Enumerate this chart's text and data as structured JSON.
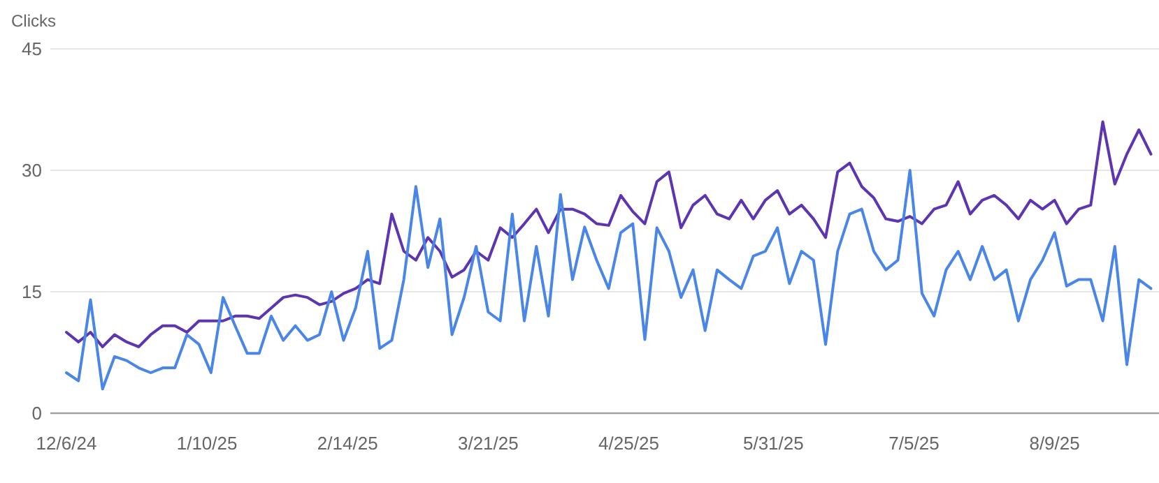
{
  "chart_data": {
    "type": "line",
    "ylabel": "Clicks",
    "x": [
      "2024-12-06",
      "2024-12-09",
      "2024-12-12",
      "2024-12-15",
      "2024-12-18",
      "2024-12-21",
      "2024-12-24",
      "2024-12-27",
      "2024-12-30",
      "2025-01-02",
      "2025-01-05",
      "2025-01-08",
      "2025-01-11",
      "2025-01-14",
      "2025-01-17",
      "2025-01-20",
      "2025-01-23",
      "2025-01-26",
      "2025-01-29",
      "2025-02-01",
      "2025-02-04",
      "2025-02-07",
      "2025-02-10",
      "2025-02-13",
      "2025-02-16",
      "2025-02-19",
      "2025-02-22",
      "2025-02-25",
      "2025-02-28",
      "2025-03-03",
      "2025-03-06",
      "2025-03-09",
      "2025-03-12",
      "2025-03-15",
      "2025-03-18",
      "2025-03-21",
      "2025-03-24",
      "2025-03-27",
      "2025-03-30",
      "2025-04-02",
      "2025-04-05",
      "2025-04-08",
      "2025-04-11",
      "2025-04-14",
      "2025-04-17",
      "2025-04-20",
      "2025-04-23",
      "2025-04-26",
      "2025-04-29",
      "2025-05-02",
      "2025-05-05",
      "2025-05-08",
      "2025-05-11",
      "2025-05-14",
      "2025-05-17",
      "2025-05-20",
      "2025-05-23",
      "2025-05-26",
      "2025-05-29",
      "2025-06-01",
      "2025-06-04",
      "2025-06-07",
      "2025-06-10",
      "2025-06-13",
      "2025-06-16",
      "2025-06-19",
      "2025-06-22",
      "2025-06-25",
      "2025-06-28",
      "2025-07-01",
      "2025-07-04",
      "2025-07-07",
      "2025-07-10",
      "2025-07-13",
      "2025-07-16",
      "2025-07-19",
      "2025-07-22",
      "2025-07-25",
      "2025-07-28",
      "2025-07-31",
      "2025-08-03",
      "2025-08-06",
      "2025-08-09",
      "2025-08-12",
      "2025-08-15",
      "2025-08-18",
      "2025-08-21",
      "2025-08-24",
      "2025-08-27",
      "2025-08-30",
      "2025-09-02"
    ],
    "series": [
      {
        "color": "#5e35b1",
        "values": [
          10,
          8.8,
          10,
          8.2,
          9.7,
          8.8,
          8.2,
          9.7,
          10.8,
          10.8,
          10,
          11.4,
          11.4,
          11.4,
          12,
          12,
          11.7,
          13,
          14.3,
          14.6,
          14.3,
          13.4,
          13.8,
          14.8,
          15.4,
          16.5,
          16,
          24.6,
          20,
          18.9,
          21.7,
          20,
          16.8,
          17.7,
          20,
          18.9,
          22.9,
          21.7,
          23.4,
          25.2,
          22.3,
          25.2,
          25.2,
          24.6,
          23.4,
          23.2,
          26.9,
          24.9,
          23.4,
          28.6,
          29.8,
          22.9,
          25.7,
          26.9,
          24.6,
          24,
          26.3,
          24,
          26.3,
          27.5,
          24.6,
          25.7,
          24,
          21.7,
          29.8,
          30.9,
          28,
          26.6,
          24,
          23.7,
          24.3,
          23.4,
          25.2,
          25.7,
          28.6,
          24.6,
          26.3,
          26.9,
          25.7,
          24,
          26.3,
          25.2,
          26.3,
          23.4,
          25.2,
          25.7,
          36,
          28.3,
          32,
          35,
          32
        ]
      },
      {
        "color": "#4a86e8",
        "values": [
          5,
          4,
          14,
          3,
          7,
          6.5,
          5.6,
          5,
          5.6,
          5.6,
          9.7,
          8.5,
          5,
          14.3,
          10.8,
          7.4,
          7.4,
          12,
          9,
          10.8,
          9,
          9.7,
          15,
          9,
          13,
          20,
          8,
          9,
          16.5,
          28,
          18,
          24,
          9.7,
          14.3,
          20.6,
          12.5,
          11.4,
          24.6,
          11.4,
          20.6,
          12,
          27,
          16.5,
          23,
          18.9,
          15.4,
          22.3,
          23.4,
          9.1,
          22.9,
          20,
          14.3,
          17.7,
          10.2,
          17.7,
          16.5,
          15.4,
          19.4,
          20,
          22.9,
          16,
          20,
          18.9,
          8.5,
          20,
          24.6,
          25.2,
          20,
          17.7,
          18.9,
          30,
          14.8,
          12,
          17.7,
          20,
          16.5,
          20.6,
          16.5,
          17.7,
          11.4,
          16.5,
          18.9,
          22.3,
          15.7,
          16.5,
          16.5,
          11.4,
          20.6,
          6,
          16.5,
          15.4
        ]
      }
    ],
    "xlim": [
      "2024-12-02",
      "2025-09-04"
    ],
    "xticks": [
      {
        "value": "2024-12-06",
        "label": "12/6/24"
      },
      {
        "value": "2025-01-10",
        "label": "1/10/25"
      },
      {
        "value": "2025-02-14",
        "label": "2/14/25"
      },
      {
        "value": "2025-03-21",
        "label": "3/21/25"
      },
      {
        "value": "2025-04-25",
        "label": "4/25/25"
      },
      {
        "value": "2025-05-31",
        "label": "5/31/25"
      },
      {
        "value": "2025-07-05",
        "label": "7/5/25"
      },
      {
        "value": "2025-08-09",
        "label": "8/9/25"
      }
    ],
    "ylim": [
      0,
      45
    ],
    "yticks": [
      0,
      15,
      30,
      45
    ],
    "grid": "y",
    "marker": "none",
    "line_style": "solid"
  }
}
